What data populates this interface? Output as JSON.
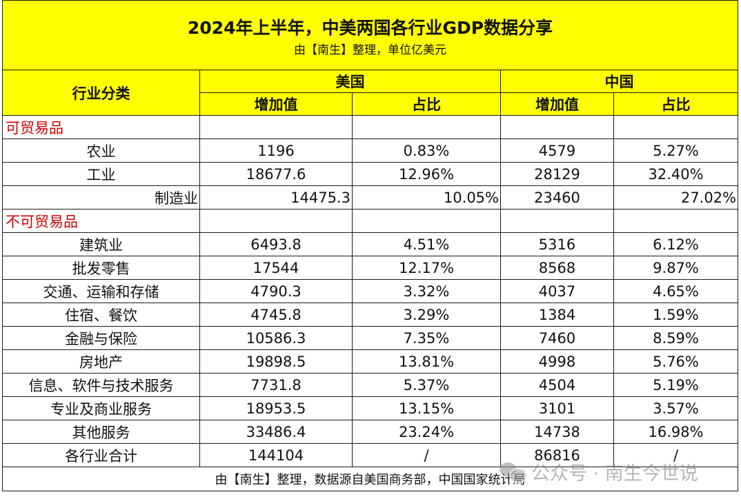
{
  "title": "2024年上半年，中美两国各行业GDP数据分享",
  "subtitle": "由【南生】整理，单位亿美元",
  "header": {
    "category": "行业分类",
    "us": "美国",
    "cn": "中国",
    "value": "增加值",
    "share": "占比"
  },
  "sections": {
    "tradable": "可贸易品",
    "non_tradable": "不可贸易品"
  },
  "rows": [
    {
      "name": "农业",
      "us_value": "1196",
      "us_share": "0.83%",
      "cn_value": "4579",
      "cn_share": "5.27%"
    },
    {
      "name": "工业",
      "us_value": "18677.6",
      "us_share": "12.96%",
      "cn_value": "28129",
      "cn_share": "32.40%"
    },
    {
      "name": "制造业",
      "us_value": "14475.3",
      "us_share": "10.05%",
      "cn_value": "23460",
      "cn_share": "27.02%"
    },
    {
      "name": "建筑业",
      "us_value": "6493.8",
      "us_share": "4.51%",
      "cn_value": "5316",
      "cn_share": "6.12%"
    },
    {
      "name": "批发零售",
      "us_value": "17544",
      "us_share": "12.17%",
      "cn_value": "8568",
      "cn_share": "9.87%"
    },
    {
      "name": "交通、运输和存储",
      "us_value": "4790.3",
      "us_share": "3.32%",
      "cn_value": "4037",
      "cn_share": "4.65%"
    },
    {
      "name": "住宿、餐饮",
      "us_value": "4745.8",
      "us_share": "3.29%",
      "cn_value": "1384",
      "cn_share": "1.59%"
    },
    {
      "name": "金融与保险",
      "us_value": "10586.3",
      "us_share": "7.35%",
      "cn_value": "7460",
      "cn_share": "8.59%"
    },
    {
      "name": "房地产",
      "us_value": "19898.5",
      "us_share": "13.81%",
      "cn_value": "4998",
      "cn_share": "5.76%"
    },
    {
      "name": "信息、软件与技术服务",
      "us_value": "7731.8",
      "us_share": "5.37%",
      "cn_value": "4504",
      "cn_share": "5.19%"
    },
    {
      "name": "专业及商业服务",
      "us_value": "18953.5",
      "us_share": "13.15%",
      "cn_value": "3101",
      "cn_share": "3.57%"
    },
    {
      "name": "其他服务",
      "us_value": "33486.4",
      "us_share": "23.24%",
      "cn_value": "14738",
      "cn_share": "16.98%"
    },
    {
      "name": "各行业合计",
      "us_value": "144104",
      "us_share": "/",
      "cn_value": "86816",
      "cn_share": "/"
    }
  ],
  "footer": "由【南生】整理，数据源自美国商务部，中国国家统计局",
  "watermark": "公众号 · 南生今世说",
  "colors": {
    "header_fill": "#ffff00",
    "section_text": "#cc0000"
  }
}
